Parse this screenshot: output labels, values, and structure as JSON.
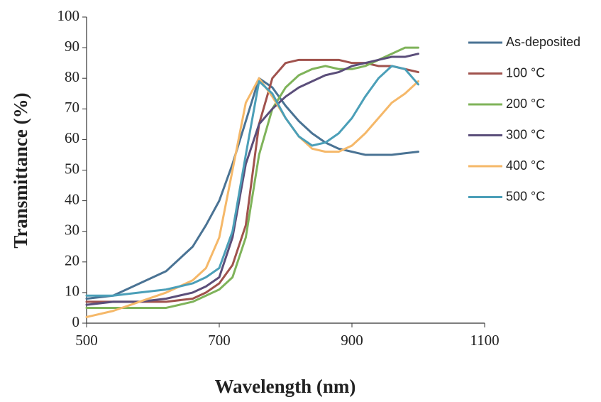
{
  "chart_data": {
    "type": "line",
    "x_label": "Wavelength (nm)",
    "y_label": "Transmittance (%)",
    "x": [
      500,
      540,
      580,
      620,
      660,
      680,
      700,
      720,
      740,
      760,
      780,
      800,
      820,
      840,
      860,
      880,
      900,
      920,
      940,
      960,
      980,
      1000
    ],
    "series": [
      {
        "name": "As-deposited",
        "color": "#4a7394",
        "values": [
          8,
          9,
          13,
          17,
          25,
          32,
          40,
          52,
          66,
          80,
          77,
          71,
          66,
          62,
          59,
          57,
          56,
          55,
          55,
          55,
          55.5,
          56
        ]
      },
      {
        "name": "100 °C",
        "color": "#a0524d",
        "values": [
          7,
          7,
          7,
          7,
          8,
          10,
          13,
          19,
          32,
          65,
          80,
          85,
          86,
          86,
          86,
          86,
          85,
          85,
          84,
          84,
          83,
          82
        ]
      },
      {
        "name": "200 °C",
        "color": "#7fb35a",
        "values": [
          5,
          5,
          5,
          5,
          7,
          9,
          11,
          15,
          28,
          55,
          70,
          77,
          81,
          83,
          84,
          83,
          83,
          84,
          86,
          88,
          90,
          90
        ]
      },
      {
        "name": "300 °C",
        "color": "#5b4e7a",
        "values": [
          6,
          7,
          7,
          8,
          10,
          12,
          15,
          28,
          52,
          65,
          70,
          74,
          77,
          79,
          81,
          82,
          84,
          85,
          86,
          87,
          87,
          88
        ]
      },
      {
        "name": "400 °C",
        "color": "#f5b869",
        "values": [
          2,
          4,
          7,
          10,
          14,
          18,
          28,
          50,
          72,
          80,
          74,
          67,
          61,
          57,
          56,
          56,
          58,
          62,
          67,
          72,
          75,
          79
        ]
      },
      {
        "name": "500 °C",
        "color": "#4b9fb8",
        "values": [
          9,
          9,
          10,
          11,
          13,
          15,
          18,
          30,
          55,
          79,
          75,
          67,
          61,
          58,
          59,
          62,
          67,
          74,
          80,
          84,
          83,
          78
        ]
      }
    ],
    "xlim": [
      500,
      1100
    ],
    "xticks": [
      500,
      700,
      900,
      1100
    ],
    "ylim": [
      0,
      100
    ],
    "yticks": [
      0,
      10,
      20,
      30,
      40,
      50,
      60,
      70,
      80,
      90,
      100
    ],
    "grid": false
  }
}
